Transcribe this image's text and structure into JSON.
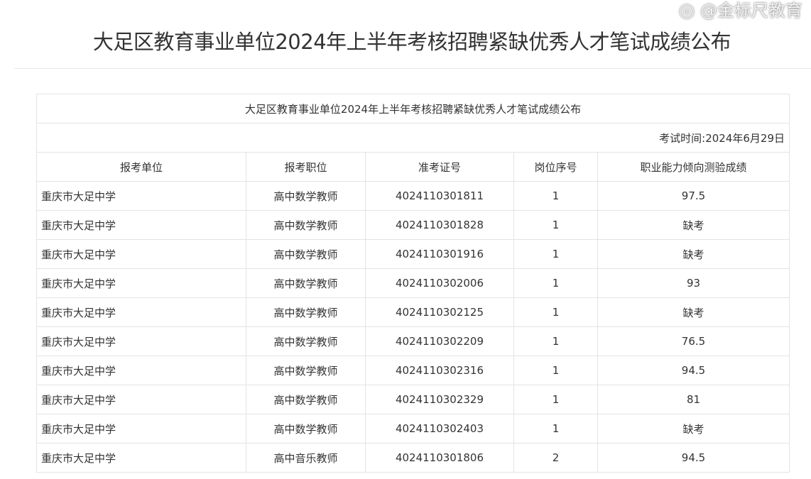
{
  "page_title": "大足区教育事业单位2024年上半年考核招聘紧缺优秀人才笔试成绩公布",
  "table": {
    "caption": "大足区教育事业单位2024年上半年考核招聘紧缺优秀人才笔试成绩公布",
    "exam_time": "考试时间:2024年6月29日",
    "headers": [
      "报考单位",
      "报考职位",
      "准考证号",
      "岗位序号",
      "职业能力倾向测验成绩"
    ],
    "rows": [
      [
        "重庆市大足中学",
        "高中数学教师",
        "4024110301811",
        "1",
        "97.5"
      ],
      [
        "重庆市大足中学",
        "高中数学教师",
        "4024110301828",
        "1",
        "缺考"
      ],
      [
        "重庆市大足中学",
        "高中数学教师",
        "4024110301916",
        "1",
        "缺考"
      ],
      [
        "重庆市大足中学",
        "高中数学教师",
        "4024110302006",
        "1",
        "93"
      ],
      [
        "重庆市大足中学",
        "高中数学教师",
        "4024110302125",
        "1",
        "缺考"
      ],
      [
        "重庆市大足中学",
        "高中数学教师",
        "4024110302209",
        "1",
        "76.5"
      ],
      [
        "重庆市大足中学",
        "高中数学教师",
        "4024110302316",
        "1",
        "94.5"
      ],
      [
        "重庆市大足中学",
        "高中数学教师",
        "4024110302329",
        "1",
        "81"
      ],
      [
        "重庆市大足中学",
        "高中数学教师",
        "4024110302403",
        "1",
        "缺考"
      ],
      [
        "重庆市大足中学",
        "高中音乐教师",
        "4024110301806",
        "2",
        "94.5"
      ]
    ]
  },
  "watermark": "@金标尺教育"
}
